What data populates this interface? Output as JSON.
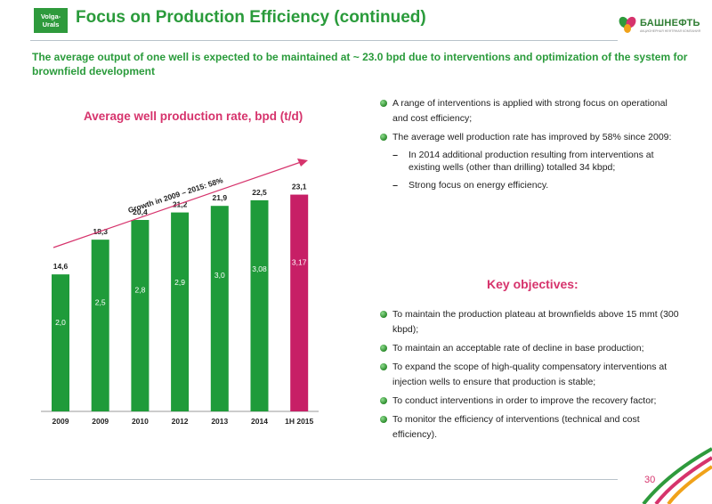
{
  "header": {
    "badge_line1": "Volga-",
    "badge_line2": "Urals",
    "title": "Focus on Production Efficiency (continued)",
    "logo_name": "БАШНЕФТЬ",
    "logo_sub": "АКЦИОНЕРНАЯ НЕФТЯНАЯ КОМПАНИЯ"
  },
  "subtitle": "The average output of one well is expected to be maintained at ~ 23.0 bpd due to interventions and optimization of the system for brownfield development",
  "chart_data": {
    "type": "bar",
    "title": "Average well production rate, bpd (t/d)",
    "categories": [
      "2009",
      "2009",
      "2010",
      "2012",
      "2013",
      "2014",
      "1H 2015"
    ],
    "values": [
      14.6,
      18.3,
      20.4,
      21.2,
      21.9,
      22.5,
      23.1
    ],
    "value_labels": [
      "14,6",
      "18,3",
      "20,4",
      "21,2",
      "21,9",
      "22,5",
      "23,1"
    ],
    "inner_labels": [
      "2,0",
      "2,5",
      "2,8",
      "2,9",
      "3,0",
      "3,08",
      "3,17"
    ],
    "colors": [
      "#1f9b3a",
      "#1f9b3a",
      "#1f9b3a",
      "#1f9b3a",
      "#1f9b3a",
      "#1f9b3a",
      "#c71f66"
    ],
    "arrow_label": "Growth in 2009 – 2015: 58%",
    "ylim": [
      0,
      26
    ]
  },
  "right": {
    "bullets": [
      {
        "type": "dot",
        "text": "A range of interventions is applied with strong focus on operational and cost efficiency;"
      },
      {
        "type": "dot",
        "text": "The average well production rate has improved by 58% since 2009:"
      },
      {
        "type": "dash",
        "text": "In 2014 additional production resulting from interventions at existing wells (other than drilling) totalled 34 kbpd;"
      },
      {
        "type": "dash",
        "text": "Strong focus on energy efficiency."
      }
    ],
    "key_title": "Key objectives:",
    "objectives": [
      "To maintain the production plateau at brownfields above 15 mmt (300 kbpd);",
      "To maintain an acceptable rate of decline in base production;",
      "To expand the scope of high-quality compensatory interventions at injection wells to ensure that production is stable;",
      "To conduct interventions in order to improve the recovery factor;",
      "To monitor the efficiency of interventions (technical and cost efficiency)."
    ]
  },
  "footer": {
    "page_number": "30"
  }
}
